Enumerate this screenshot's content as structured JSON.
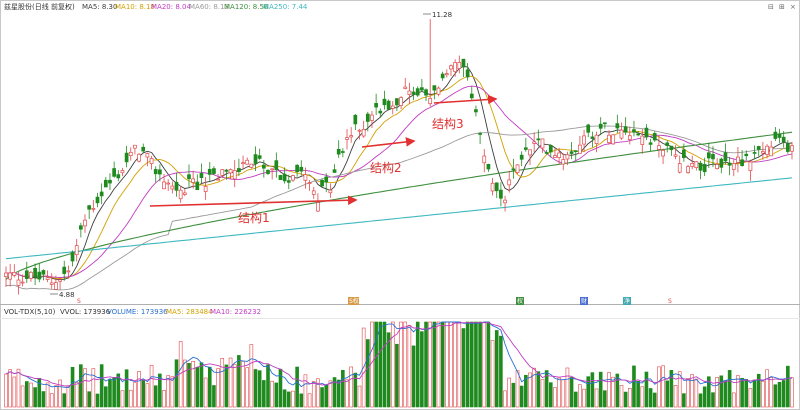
{
  "colors": {
    "up": "#e0484b",
    "down": "#1f8a1f",
    "ma5": "#3c3c3c",
    "ma10": "#d2a100",
    "ma20": "#c23cc2",
    "ma60": "#9a9a9a",
    "ma120": "#3f8f3f",
    "ma250": "#3fb8c0",
    "arrow": "#e03030",
    "grid": "#d0d0d0"
  },
  "header": {
    "title": "兹星股份(日线 前复权)",
    "ma5": "MA5: 8.30",
    "ma10": "MA10: 8.18",
    "ma20": "MA20: 8.04",
    "ma60": "MA60: 8.13",
    "ma120": "MA120: 8.56",
    "ma250": "MA250: 7.44"
  },
  "vol_header": {
    "title": "VOL-TDX(5,10)",
    "vvol": "VVOL: 173936",
    "volume": "VOLUME: 173936",
    "ma5": "MA5: 283484",
    "ma10": "MA10: 226232"
  },
  "toolbar": {
    "button_1": "⊟",
    "button_2": "⊞",
    "close": "×"
  },
  "annotations": {
    "high": "11.28",
    "low": "4.88",
    "s1": "结构1",
    "s2": "结构2",
    "s3": "结构3"
  },
  "markers": {
    "m1": "S",
    "m2": "S权",
    "m3": "权",
    "m4": "财",
    "m5": "净",
    "m6": "S"
  },
  "chart_data": {
    "type": "candlestick",
    "title": "兹星股份(日线 前复权)",
    "price_range_visible": [
      4.88,
      11.28
    ],
    "highest": 11.28,
    "lowest": 4.88,
    "moving_averages": {
      "MA5": 8.3,
      "MA10": 8.18,
      "MA20": 8.04,
      "MA60": 8.13,
      "MA120": 8.56,
      "MA250": 7.44
    },
    "volume_indicator": {
      "name": "VOL-TDX(5,10)",
      "VVOL": 173936,
      "VOLUME": 173936,
      "MA5": 283484,
      "MA10": 226232
    },
    "annotations": [
      "结构1",
      "结构2",
      "结构3"
    ]
  }
}
